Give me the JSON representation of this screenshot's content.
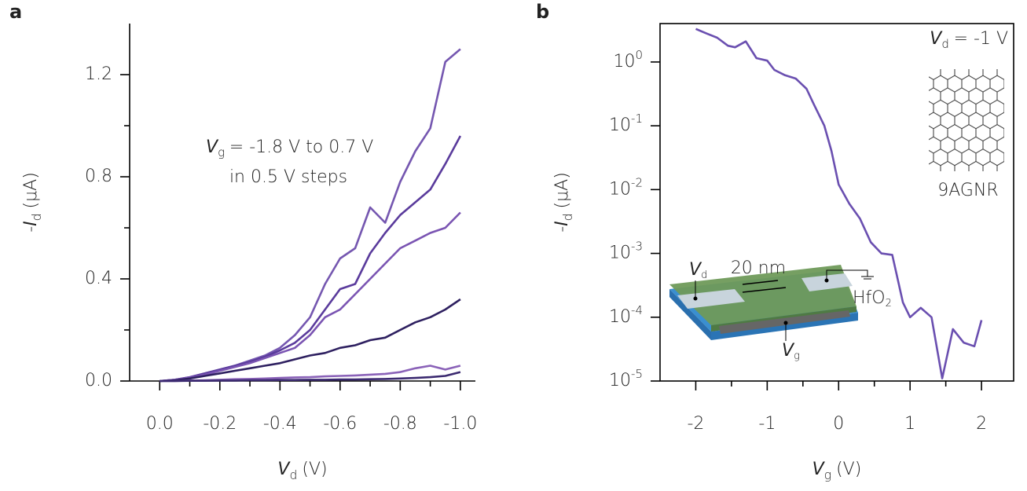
{
  "chart_data": [
    {
      "type": "line",
      "panel": "a",
      "xlabel": {
        "symbol": "V",
        "sub": "d",
        "unit": "(V)"
      },
      "ylabel": {
        "prefix": "-",
        "symbol": "I",
        "sub": "d",
        "unit": "(μA)"
      },
      "annotation": {
        "symbol": "V",
        "sub": "g",
        "text": "= -1.8 V to 0.7 V",
        "line2": "in 0.5 V steps"
      },
      "x": [
        0,
        -0.05,
        -0.1,
        -0.15,
        -0.2,
        -0.25,
        -0.3,
        -0.35,
        -0.4,
        -0.45,
        -0.5,
        -0.55,
        -0.6,
        -0.65,
        -0.7,
        -0.75,
        -0.8,
        -0.85,
        -0.9,
        -0.95,
        -1.0
      ],
      "series": [
        {
          "color": "#7557b0",
          "values": [
            0,
            0.005,
            0.015,
            0.03,
            0.045,
            0.06,
            0.08,
            0.1,
            0.13,
            0.18,
            0.25,
            0.38,
            0.48,
            0.52,
            0.68,
            0.62,
            0.78,
            0.9,
            0.99,
            1.25,
            1.3
          ]
        },
        {
          "color": "#5a3b9c",
          "values": [
            0,
            0.005,
            0.015,
            0.03,
            0.045,
            0.06,
            0.075,
            0.095,
            0.12,
            0.15,
            0.2,
            0.28,
            0.36,
            0.38,
            0.5,
            0.58,
            0.65,
            0.7,
            0.75,
            0.85,
            0.96
          ]
        },
        {
          "color": "#7a54b2",
          "values": [
            0,
            0.005,
            0.013,
            0.025,
            0.04,
            0.055,
            0.07,
            0.09,
            0.11,
            0.13,
            0.18,
            0.25,
            0.28,
            0.34,
            0.4,
            0.46,
            0.52,
            0.55,
            0.58,
            0.6,
            0.66
          ]
        },
        {
          "color": "#2e2060",
          "values": [
            0,
            0.003,
            0.01,
            0.02,
            0.03,
            0.04,
            0.05,
            0.06,
            0.07,
            0.085,
            0.1,
            0.11,
            0.13,
            0.14,
            0.16,
            0.17,
            0.2,
            0.23,
            0.25,
            0.28,
            0.32
          ]
        },
        {
          "color": "#8a62b8",
          "values": [
            0,
            0,
            0.002,
            0.003,
            0.005,
            0.007,
            0.008,
            0.01,
            0.012,
            0.014,
            0.015,
            0.018,
            0.02,
            0.022,
            0.025,
            0.028,
            0.035,
            0.05,
            0.06,
            0.045,
            0.06
          ]
        },
        {
          "color": "#3b2a70",
          "values": [
            0,
            0,
            0.001,
            0.001,
            0.002,
            0.002,
            0.003,
            0.003,
            0.004,
            0.004,
            0.005,
            0.005,
            0.006,
            0.006,
            0.007,
            0.008,
            0.01,
            0.012,
            0.015,
            0.02,
            0.035
          ]
        }
      ],
      "xlim": [
        0.1,
        -1.05
      ],
      "xticks": [
        {
          "value": 0,
          "label": "0.0"
        },
        -0.2,
        -0.4,
        -0.6,
        -0.8,
        {
          "value": -1,
          "label": "-1.0"
        }
      ],
      "xminorticks": [
        -0.1,
        -0.3,
        -0.5,
        -0.7,
        -0.9
      ],
      "ylim": [
        0,
        1.4
      ],
      "yticks": [
        {
          "value": 0,
          "label": "0.0"
        },
        0.4,
        0.8,
        1.2
      ],
      "yminorticks": [
        0.2,
        0.6,
        1.0
      ]
    },
    {
      "type": "line",
      "panel": "b",
      "ylog": true,
      "color": "#6a4fb0",
      "xlabel": {
        "symbol": "V",
        "sub": "g",
        "unit": "(V)"
      },
      "ylabel": {
        "prefix": "-",
        "symbol": "I",
        "sub": "d",
        "unit": "(μA)"
      },
      "annotation": {
        "symbol": "V",
        "sub": "d",
        "text": "= -1 V"
      },
      "molecule_label": "9AGNR",
      "inset": {
        "drain": {
          "symbol": "V",
          "sub": "d"
        },
        "gap": "20 nm",
        "dielectric": {
          "text": "HfO",
          "sub": "2"
        },
        "gate": {
          "symbol": "V",
          "sub": "g"
        }
      },
      "x": [
        -2,
        -1.85,
        -1.7,
        -1.55,
        -1.45,
        -1.3,
        -1.15,
        -1.0,
        -0.9,
        -0.75,
        -0.6,
        -0.45,
        -0.35,
        -0.2,
        -0.1,
        0,
        0.15,
        0.3,
        0.45,
        0.6,
        0.75,
        0.9,
        1.0,
        1.15,
        1.3,
        1.45,
        1.6,
        1.75,
        1.9,
        2.0
      ],
      "values": [
        3.3,
        2.8,
        2.4,
        1.8,
        1.7,
        2.1,
        1.15,
        1.05,
        0.75,
        0.62,
        0.55,
        0.38,
        0.22,
        0.1,
        0.04,
        0.012,
        0.006,
        0.0035,
        0.0015,
        0.001,
        0.00095,
        0.00017,
        0.0001,
        0.00014,
        0.0001,
        1.1e-05,
        6.5e-05,
        4e-05,
        3.5e-05,
        9e-05
      ],
      "xlim": [
        -2.5,
        2.45
      ],
      "xticks": [
        -2,
        -1,
        0,
        1,
        2
      ],
      "xminorticks": [
        -1.5,
        -0.5,
        0.5,
        1.5
      ],
      "ylim": [
        1e-05,
        4
      ],
      "yticks": [
        {
          "value": 1,
          "label": "10",
          "sup": "0"
        },
        {
          "value": 0.1,
          "label": "10",
          "sup": "-1"
        },
        {
          "value": 0.01,
          "label": "10",
          "sup": "-2"
        },
        {
          "value": 0.001,
          "label": "10",
          "sup": "-3"
        },
        {
          "value": 0.0001,
          "label": "10",
          "sup": "-4"
        },
        {
          "value": 1e-05,
          "label": "10",
          "sup": "-5"
        }
      ]
    }
  ]
}
